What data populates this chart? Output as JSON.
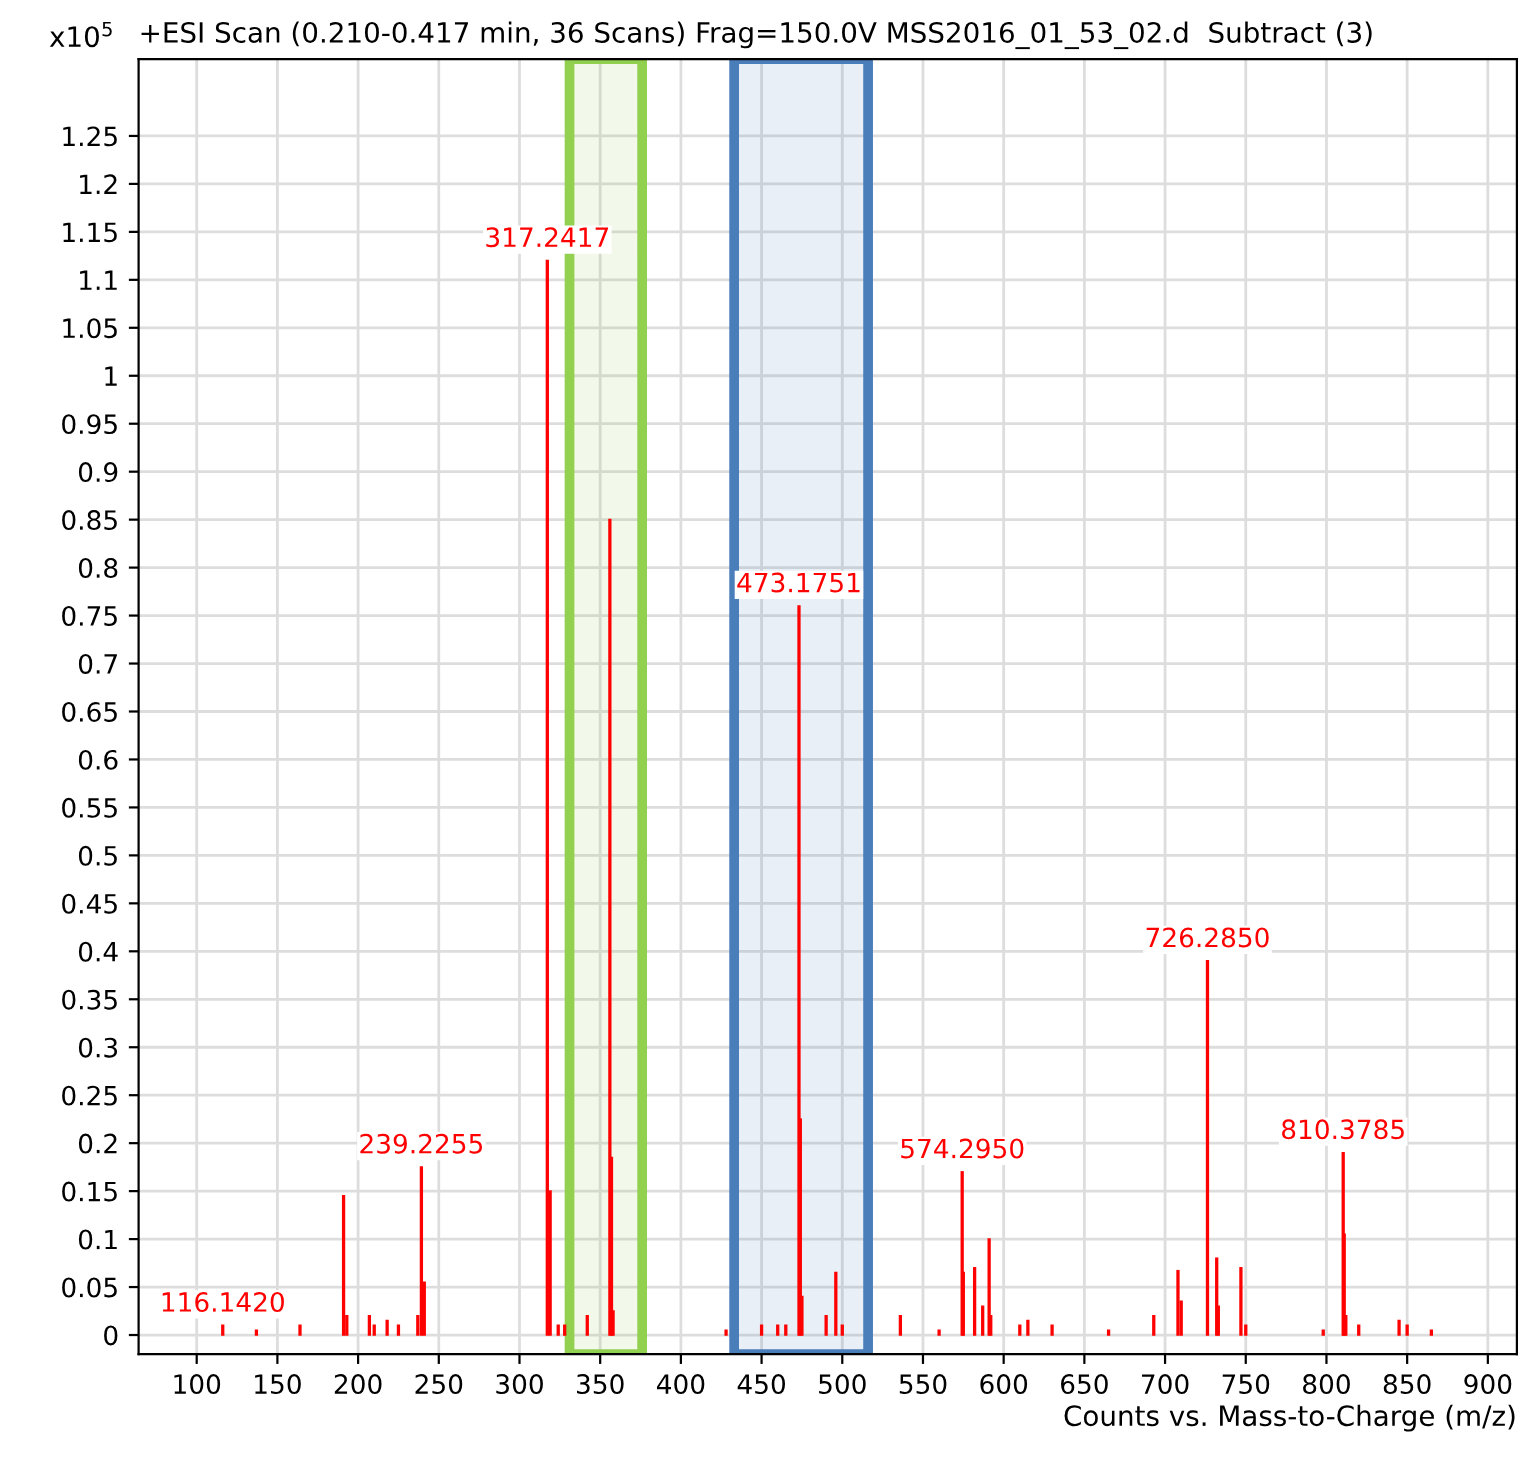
{
  "chart_data": {
    "type": "bar",
    "title": "+ESI Scan (0.210-0.417 min, 36 Scans) Frag=150.0V MSS2016_01_53_02.d  Subtract (3)",
    "xlabel": "Counts vs. Mass-to-Charge (m/z)",
    "ylabel": "x10$^{5}$",
    "x": [
      116.142,
      137,
      164,
      191,
      193,
      207,
      210,
      218,
      225,
      237,
      239.2255,
      241,
      317.2417,
      319,
      324,
      328,
      342,
      356,
      357,
      358,
      428,
      450,
      460,
      465,
      473.1751,
      474,
      475,
      490,
      496,
      500,
      536,
      560,
      574.295,
      575,
      582,
      587,
      591,
      592,
      610,
      615,
      630,
      665,
      693,
      708,
      710,
      726.285,
      732,
      733,
      747,
      750,
      798,
      810.3785,
      811,
      812,
      820,
      845,
      850,
      865
    ],
    "series": [
      {
        "color": "#ff0000",
        "values": [
          0.01,
          0.005,
          0.01,
          0.145,
          0.02,
          0.02,
          0.01,
          0.015,
          0.01,
          0.02,
          0.175,
          0.055,
          1.12,
          0.15,
          0.01,
          0.01,
          0.02,
          0.85,
          0.185,
          0.025,
          0.005,
          0.01,
          0.01,
          0.01,
          0.76,
          0.225,
          0.04,
          0.02,
          0.065,
          0.01,
          0.02,
          0.005,
          0.17,
          0.065,
          0.07,
          0.03,
          0.1,
          0.02,
          0.01,
          0.015,
          0.01,
          0.005,
          0.02,
          0.067,
          0.035,
          0.39,
          0.08,
          0.03,
          0.07,
          0.01,
          0.005,
          0.19,
          0.105,
          0.02,
          0.01,
          0.015,
          0.01,
          0.005
        ]
      }
    ],
    "annotations": [
      {
        "text": "116.1420",
        "x": 116.142,
        "y": 0.01
      },
      {
        "text": "239.2255",
        "x": 239.2255,
        "y": 0.175
      },
      {
        "text": "317.2417",
        "x": 317.2417,
        "y": 1.12
      },
      {
        "text": "473.1751",
        "x": 473.1751,
        "y": 0.76
      },
      {
        "text": "574.2950",
        "x": 574.295,
        "y": 0.17
      },
      {
        "text": "726.2850",
        "x": 726.285,
        "y": 0.39
      },
      {
        "text": "810.3785",
        "x": 810.3785,
        "y": 0.19
      }
    ],
    "bands": [
      {
        "axis": "x",
        "from": 331,
        "to": 376,
        "color": "#92d050"
      },
      {
        "axis": "x",
        "from": 433,
        "to": 516,
        "color": "#4a7ebb"
      }
    ],
    "xlim": [
      64,
      918
    ],
    "ylim": [
      -0.02,
      1.33
    ],
    "xticks": [
      100,
      150,
      200,
      250,
      300,
      350,
      400,
      450,
      500,
      550,
      600,
      650,
      700,
      750,
      800,
      850,
      900
    ],
    "yticks": [
      0,
      0.05,
      0.1,
      0.15,
      0.2,
      0.25,
      0.3,
      0.35,
      0.4,
      0.45,
      0.5,
      0.55,
      0.6,
      0.65,
      0.7,
      0.75,
      0.8,
      0.85,
      0.9,
      0.95,
      1,
      1.05,
      1.1,
      1.15,
      1.2,
      1.25
    ],
    "grid": true
  }
}
